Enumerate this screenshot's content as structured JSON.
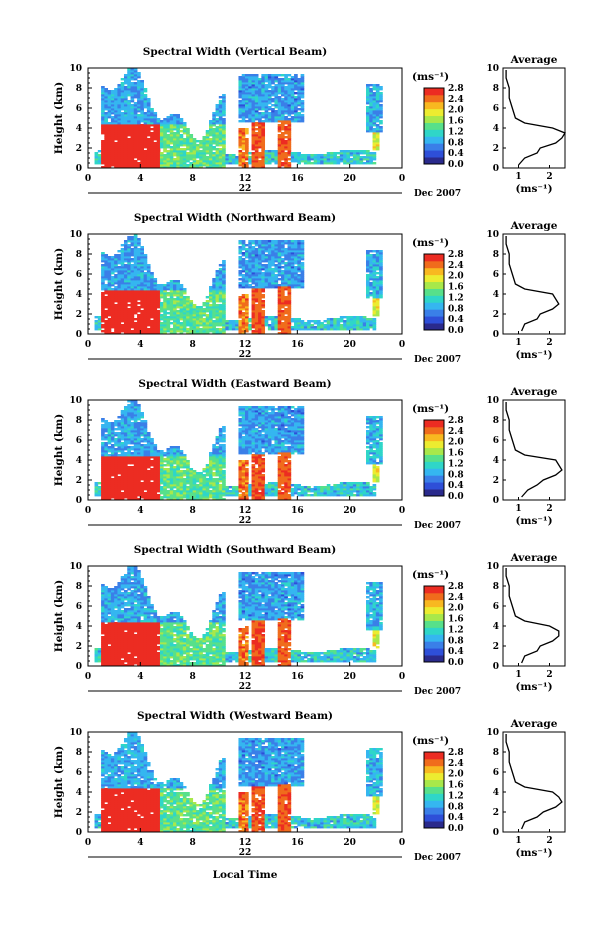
{
  "figure": {
    "xlabel": "Local Time",
    "date_label": "Dec 2007",
    "day_label": "22",
    "ylabel": "Height (km)",
    "units_label": "(ms⁻¹)",
    "avg_title": "Average",
    "avg_xlabel": "(ms⁻¹)"
  },
  "colorscale": {
    "stops": [
      "#2a2a8c",
      "#2e4fd8",
      "#3a7fe8",
      "#35b6f0",
      "#2fd6c8",
      "#57e08a",
      "#a8e84a",
      "#ecec30",
      "#f8b820",
      "#f06c1c",
      "#ec2c22"
    ]
  },
  "panels": [
    {
      "title": "Spectral Width (Vertical Beam)",
      "colorbar_ticks": [
        "2.8",
        "2.4",
        "2.0",
        "1.6",
        "1.2",
        "0.8",
        "0.4",
        "0.0"
      ],
      "avg_xticks": [
        "1",
        "2"
      ]
    },
    {
      "title": "Spectral Width (Northward Beam)",
      "colorbar_ticks": [
        "2.8",
        "2.4",
        "2.0",
        "1.6",
        "1.2",
        "0.8",
        "0.4",
        "0.0"
      ],
      "avg_xticks": [
        "1",
        "2"
      ]
    },
    {
      "title": "Spectral Width (Eastward Beam)",
      "colorbar_ticks": [
        "2.8",
        "2.4",
        "2.0",
        "1.6",
        "1.2",
        "0.8",
        "0.4",
        "0.0"
      ],
      "avg_xticks": [
        "1",
        "2"
      ]
    },
    {
      "title": "Spectral Width (Southward Beam)",
      "colorbar_ticks": [
        "2.8",
        "2.4",
        "2.0",
        "1.6",
        "1.2",
        "0.8",
        "0.4",
        "0.0"
      ],
      "avg_xticks": [
        "1",
        "2"
      ]
    },
    {
      "title": "Spectral Width (Westward Beam)",
      "colorbar_ticks": [
        "2.8",
        "2.4",
        "2.0",
        "1.6",
        "1.2",
        "0.8",
        "0.4",
        "0.0"
      ],
      "avg_xticks": [
        "1",
        "2"
      ]
    }
  ],
  "chart_data": {
    "type": "heatmap",
    "xlabel": "Local Time",
    "ylabel": "Height (km)",
    "xlim": [
      0,
      24
    ],
    "ylim": [
      0,
      10
    ],
    "xticks": [
      "0",
      "4",
      "8",
      "12",
      "16",
      "20",
      "0"
    ],
    "yticks": [
      "0",
      "2",
      "4",
      "6",
      "8",
      "10"
    ],
    "color_range": [
      0.0,
      2.8
    ],
    "average_profile": {
      "xlim": [
        0.5,
        2.5
      ],
      "ylim": [
        0,
        10
      ],
      "heights": [
        0.3,
        1.0,
        1.5,
        2.0,
        2.5,
        3.0,
        3.5,
        4.0,
        4.5,
        5.0,
        6.0,
        7.0,
        8.0,
        9.0,
        9.8
      ],
      "vertical": [
        1.0,
        1.2,
        1.6,
        1.7,
        2.2,
        2.4,
        2.5,
        2.1,
        1.2,
        0.9,
        0.8,
        0.7,
        0.7,
        0.6,
        0.6
      ],
      "northward": [
        1.1,
        1.2,
        1.6,
        1.7,
        2.1,
        2.3,
        2.2,
        2.1,
        1.2,
        0.9,
        0.8,
        0.7,
        0.7,
        0.6,
        0.6
      ],
      "eastward": [
        1.1,
        1.3,
        1.6,
        1.8,
        2.2,
        2.4,
        2.3,
        2.2,
        1.2,
        0.9,
        0.8,
        0.7,
        0.7,
        0.6,
        0.6
      ],
      "southward": [
        1.1,
        1.2,
        1.6,
        1.7,
        2.1,
        2.3,
        2.3,
        2.0,
        1.2,
        0.9,
        0.8,
        0.7,
        0.7,
        0.6,
        0.6
      ],
      "westward": [
        1.1,
        1.2,
        1.6,
        1.8,
        2.2,
        2.4,
        2.3,
        2.1,
        1.2,
        0.9,
        0.8,
        0.7,
        0.7,
        0.6,
        0.6
      ]
    }
  }
}
